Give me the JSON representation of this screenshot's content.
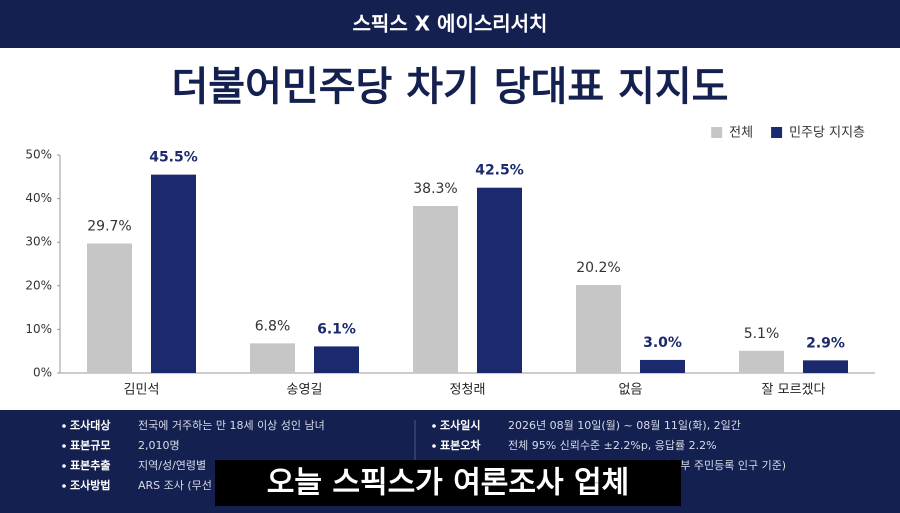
{
  "header": {
    "brand": "스픽스 X 에이스리서치"
  },
  "chart_data": {
    "type": "bar",
    "title": "더불어민주당 차기 당대표 지지도",
    "categories": [
      "김민석",
      "송영길",
      "정청래",
      "없음",
      "잘 모르겠다"
    ],
    "series": [
      {
        "name": "전체",
        "color": "#c6c6c6",
        "values": [
          29.7,
          6.8,
          38.3,
          20.2,
          5.1
        ],
        "value_labels": [
          "29.7%",
          "6.8%",
          "38.3%",
          "20.2%",
          "5.1%"
        ]
      },
      {
        "name": "민주당 지지층",
        "color": "#1b2a6e",
        "values": [
          45.5,
          6.1,
          42.5,
          3.0,
          2.9
        ],
        "value_labels": [
          "45.5%",
          "6.1%",
          "42.5%",
          "3.0%",
          "2.9%"
        ]
      }
    ],
    "ylim": [
      0,
      50
    ],
    "yticks": [
      {
        "value": 0,
        "label": "0%"
      },
      {
        "value": 10,
        "label": "10%"
      },
      {
        "value": 20,
        "label": "20%"
      },
      {
        "value": 30,
        "label": "30%"
      },
      {
        "value": 40,
        "label": "40%"
      },
      {
        "value": 50,
        "label": "50%"
      }
    ],
    "legend": "top-right"
  },
  "survey_info": {
    "left": [
      {
        "label": "조사대상",
        "text": "전국에 거주하는 만 18세 이상 성인 남녀"
      },
      {
        "label": "표본규모",
        "text": "2,010명"
      },
      {
        "label": "표본추출",
        "text": "지역/성/연령별"
      },
      {
        "label": "조사방법",
        "text": "ARS 조사 (무선"
      }
    ],
    "right": [
      {
        "label": "조사일시",
        "text": "2026년 08월 10일(월) ~ 08월 11일(화), 2일간"
      },
      {
        "label": "표본오차",
        "text": "전체 95% 신뢰수준 ±2.2%p, 응답률 2.2%"
      },
      {
        "label": "",
        "text": "안전부 주민등록 인구 기준)"
      }
    ]
  },
  "caption": "오늘 스픽스가 여론조사 업체"
}
